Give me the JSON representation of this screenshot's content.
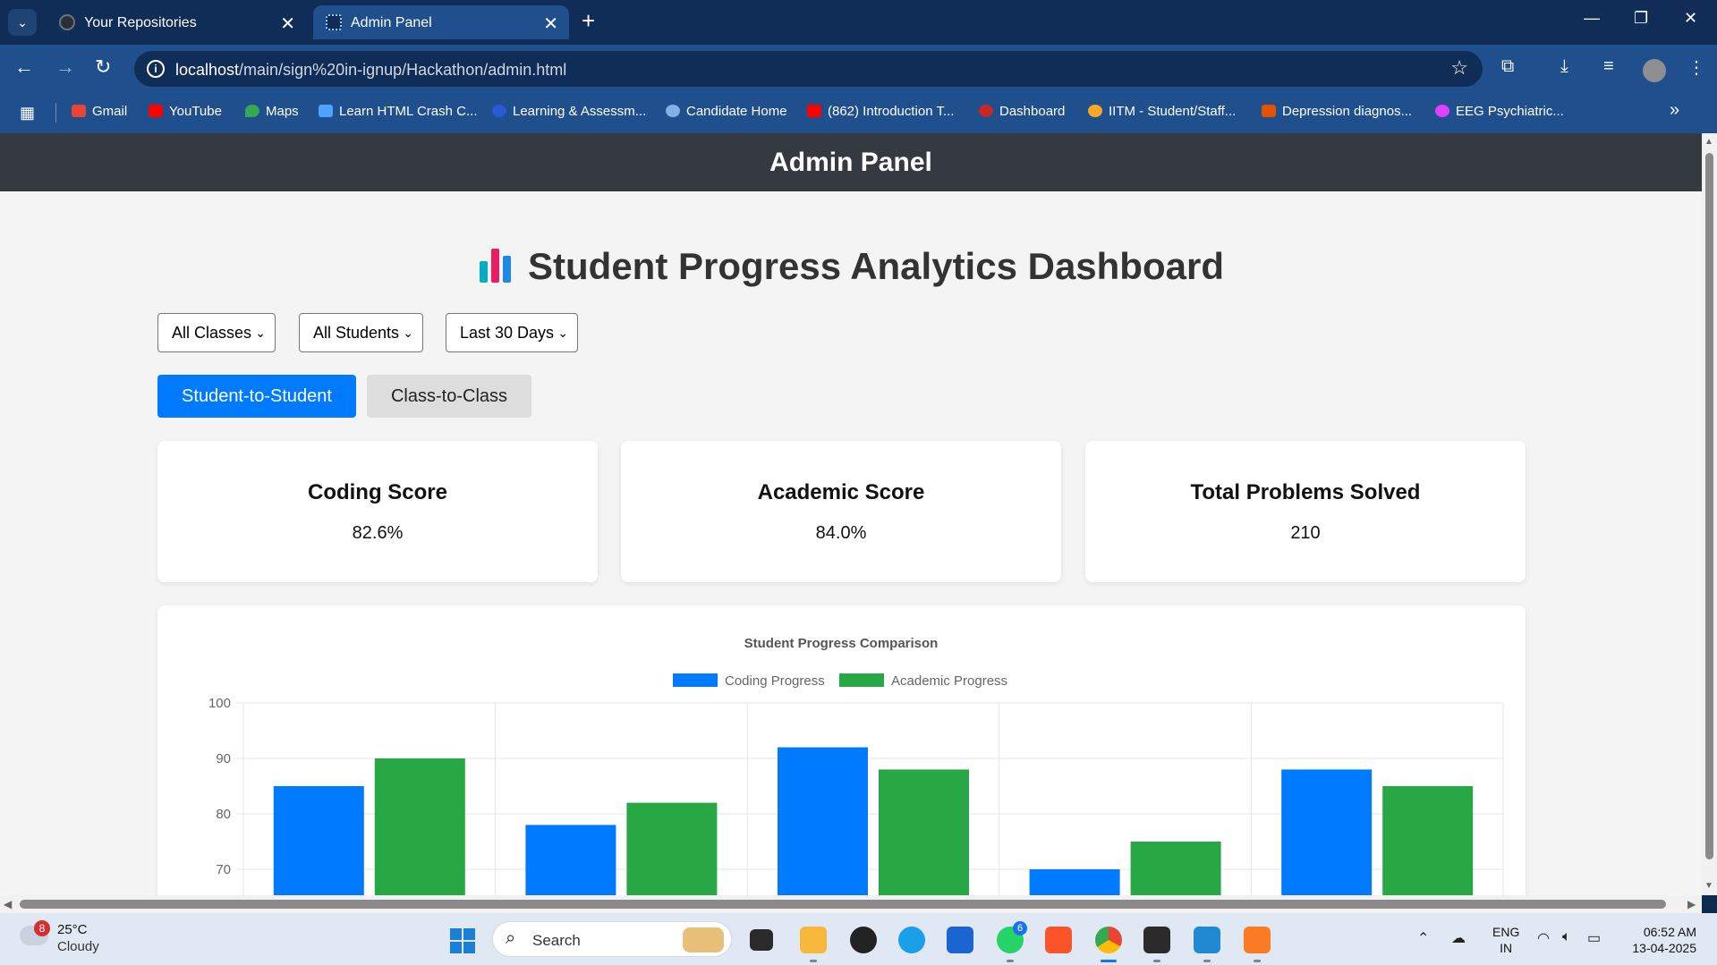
{
  "browser": {
    "tabs": [
      {
        "title": "Your Repositories",
        "active": false
      },
      {
        "title": "Admin Panel",
        "active": true
      }
    ],
    "url_host": "localhost",
    "url_path": "/main/sign%20in-ignup/Hackathon/admin.html",
    "bookmarks": [
      {
        "label": "Gmail",
        "color": "#ea4335"
      },
      {
        "label": "YouTube",
        "color": "#ff0000"
      },
      {
        "label": "Maps",
        "color": "#34a853"
      },
      {
        "label": "Learn HTML Crash C...",
        "color": "#4ea3ff"
      },
      {
        "label": "Learning & Assessm...",
        "color": "#2a5bd7"
      },
      {
        "label": "Candidate Home",
        "color": "#7fb2e6"
      },
      {
        "label": "(862) Introduction T...",
        "color": "#ff0000"
      },
      {
        "label": "Dashboard",
        "color": "#c62828"
      },
      {
        "label": "IITM - Student/Staff...",
        "color": "#f9a825"
      },
      {
        "label": "Depression diagnos...",
        "color": "#e65100"
      },
      {
        "label": "EEG Psychiatric...",
        "color": "#e040fb"
      }
    ]
  },
  "page": {
    "header": "Admin Panel",
    "dashboard_title": "Student Progress Analytics Dashboard",
    "filters": {
      "class": "All Classes",
      "student": "All Students",
      "period": "Last 30 Days"
    },
    "buttons": {
      "student_to_student": "Student-to-Student",
      "class_to_class": "Class-to-Class"
    },
    "cards": [
      {
        "title": "Coding Score",
        "value": "82.6%"
      },
      {
        "title": "Academic Score",
        "value": "84.0%"
      },
      {
        "title": "Total Problems Solved",
        "value": "210"
      }
    ]
  },
  "chart_data": {
    "type": "bar",
    "title": "Student Progress Comparison",
    "legend_position": "top",
    "grid": true,
    "ylim": [
      65,
      100
    ],
    "yticks": [
      100,
      90,
      80,
      70
    ],
    "categories": [
      "",
      "",
      "",
      "",
      ""
    ],
    "series": [
      {
        "name": "Coding Progress",
        "color": "#007bff",
        "values": [
          85,
          78,
          92,
          70,
          88
        ]
      },
      {
        "name": "Academic Progress",
        "color": "#28a745",
        "values": [
          90,
          82,
          88,
          75,
          85
        ]
      }
    ]
  },
  "taskbar": {
    "weather_temp": "25°C",
    "weather_cond": "Cloudy",
    "weather_badge": "8",
    "search_label": "Search",
    "whatsapp_badge": "6",
    "lang_1": "ENG",
    "lang_2": "IN",
    "time": "06:52 AM",
    "date": "13-04-2025"
  }
}
